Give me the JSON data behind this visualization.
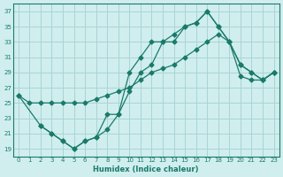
{
  "xlabel": "Humidex (Indice chaleur)",
  "bg_color": "#d0eeee",
  "grid_color": "#aad4d4",
  "line_color": "#1a7a6a",
  "xlim": [
    -0.5,
    23.5
  ],
  "ylim": [
    18,
    38
  ],
  "yticks": [
    19,
    21,
    23,
    25,
    27,
    29,
    31,
    33,
    35,
    37
  ],
  "xticks": [
    0,
    1,
    2,
    3,
    4,
    5,
    6,
    7,
    8,
    9,
    10,
    11,
    12,
    13,
    14,
    15,
    16,
    17,
    18,
    19,
    20,
    21,
    22,
    23
  ],
  "line1_x": [
    0,
    1,
    2,
    3,
    4,
    5,
    6,
    7,
    8,
    9,
    10,
    11,
    12,
    13,
    14,
    15,
    16,
    17,
    18,
    19,
    20,
    21,
    22,
    23
  ],
  "line1_y": [
    26,
    25,
    25,
    25,
    25,
    25,
    25,
    25.5,
    26,
    26.5,
    27,
    28,
    29,
    29.5,
    30,
    31,
    32,
    33,
    34,
    33,
    28.5,
    28,
    28,
    29
  ],
  "line2_x": [
    0,
    2,
    3,
    4,
    5,
    6,
    7,
    8,
    9,
    10,
    11,
    12,
    13,
    14,
    15,
    16,
    17,
    18,
    19,
    20,
    21,
    22,
    23
  ],
  "line2_y": [
    26,
    22,
    21,
    20,
    19,
    20,
    20.5,
    21.5,
    23.5,
    29,
    31,
    33,
    33,
    34,
    35,
    35.5,
    37,
    35,
    33,
    30,
    29,
    28,
    29
  ],
  "line3_x": [
    2,
    3,
    4,
    5,
    6,
    7,
    8,
    9,
    10,
    11,
    12,
    13,
    14,
    15,
    16,
    17,
    18,
    19,
    20,
    21,
    22,
    23
  ],
  "line3_y": [
    22,
    21,
    20,
    19,
    20,
    20.5,
    23.5,
    23.5,
    26.5,
    29,
    30,
    33,
    33,
    35,
    35.5,
    37,
    35,
    33,
    30,
    29,
    28,
    29
  ]
}
